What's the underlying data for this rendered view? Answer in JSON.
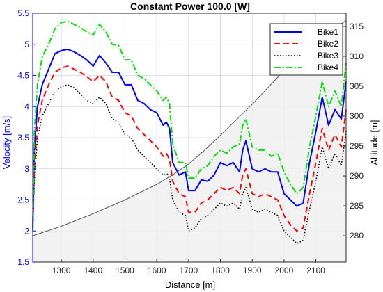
{
  "chart_data": {
    "type": "line",
    "title": "Constant Power 100.0 [W]",
    "xlabel": "Distance [m]",
    "ylabel_left": "Velocity [m/s]",
    "ylabel_right": "Altitude [m]",
    "xlim": [
      1210,
      2195
    ],
    "ylim_left": [
      1.5,
      5.5
    ],
    "ylim_right": [
      275.6,
      317.2
    ],
    "x_ticks": [
      1300,
      1400,
      1500,
      1600,
      1700,
      1800,
      1900,
      2000,
      2100
    ],
    "y_ticks_left": [
      1.5,
      2,
      2.5,
      3,
      3.5,
      4,
      4.5,
      5,
      5.5
    ],
    "y_ticks_right": [
      280,
      285,
      290,
      295,
      300,
      305,
      310,
      315
    ],
    "grid": true,
    "legend_position": "top-right",
    "colors": {
      "left_axis": "#0000ff",
      "altitude_line": "#555555",
      "altitude_fill": "#f0f0f0",
      "grid": "#d0d0ff"
    },
    "altitude": {
      "x": [
        1210,
        1300,
        1400,
        1500,
        1600,
        1650,
        1700,
        1750,
        1800,
        1850,
        1900,
        1950,
        2000,
        2050,
        2100,
        2150,
        2195
      ],
      "y": [
        280.0,
        281.6,
        283.7,
        286.0,
        288.6,
        290.2,
        292.0,
        294.3,
        296.8,
        299.4,
        302.0,
        304.8,
        307.6,
        310.2,
        312.4,
        314.3,
        316.0
      ]
    },
    "series": [
      {
        "name": "Bike1",
        "color": "#0000ff",
        "dash": "solid",
        "x": [
          1210,
          1215,
          1225,
          1240,
          1260,
          1280,
          1300,
          1320,
          1340,
          1360,
          1380,
          1400,
          1420,
          1440,
          1460,
          1480,
          1500,
          1520,
          1540,
          1560,
          1580,
          1600,
          1620,
          1630,
          1640,
          1650,
          1670,
          1690,
          1700,
          1720,
          1740,
          1760,
          1780,
          1800,
          1820,
          1840,
          1860,
          1870,
          1880,
          1900,
          1920,
          1940,
          1960,
          1980,
          2000,
          2020,
          2040,
          2060,
          2080,
          2100,
          2120,
          2140,
          2160,
          2180,
          2195
        ],
        "y": [
          2.0,
          3.3,
          4.0,
          4.35,
          4.6,
          4.85,
          4.9,
          4.92,
          4.88,
          4.82,
          4.75,
          4.65,
          4.82,
          4.7,
          4.55,
          4.55,
          4.35,
          4.35,
          4.1,
          4.05,
          3.95,
          3.9,
          3.7,
          3.75,
          3.65,
          3.1,
          2.9,
          2.95,
          2.65,
          2.65,
          2.82,
          2.8,
          2.9,
          3.1,
          3.05,
          3.1,
          2.95,
          3.3,
          3.45,
          3.0,
          2.95,
          3.0,
          2.95,
          2.95,
          2.6,
          2.5,
          2.4,
          2.45,
          3.1,
          3.6,
          4.15,
          3.7,
          3.95,
          3.8,
          4.4
        ]
      },
      {
        "name": "Bike2",
        "color": "#ff0000",
        "dash": "dashed",
        "x": [
          1210,
          1215,
          1225,
          1240,
          1260,
          1280,
          1300,
          1320,
          1340,
          1360,
          1380,
          1400,
          1420,
          1440,
          1460,
          1480,
          1500,
          1520,
          1540,
          1560,
          1580,
          1600,
          1620,
          1630,
          1640,
          1650,
          1670,
          1690,
          1700,
          1720,
          1740,
          1760,
          1780,
          1800,
          1820,
          1840,
          1860,
          1870,
          1880,
          1900,
          1920,
          1940,
          1960,
          1980,
          2000,
          2020,
          2040,
          2060,
          2080,
          2100,
          2120,
          2140,
          2160,
          2180,
          2195
        ],
        "y": [
          2.0,
          3.0,
          3.7,
          4.1,
          4.35,
          4.55,
          4.62,
          4.65,
          4.6,
          4.55,
          4.48,
          4.4,
          4.5,
          4.4,
          4.15,
          4.1,
          3.9,
          3.85,
          3.65,
          3.55,
          3.45,
          3.35,
          3.2,
          3.25,
          3.15,
          2.8,
          2.6,
          2.55,
          2.3,
          2.3,
          2.45,
          2.5,
          2.6,
          2.7,
          2.65,
          2.7,
          2.6,
          2.9,
          3.0,
          2.6,
          2.55,
          2.6,
          2.55,
          2.5,
          2.25,
          2.1,
          2.0,
          2.05,
          2.6,
          3.1,
          3.65,
          3.3,
          3.55,
          3.35,
          3.95
        ]
      },
      {
        "name": "Bike3",
        "color": "#000000",
        "dash": "dotted",
        "x": [
          1210,
          1215,
          1225,
          1240,
          1260,
          1280,
          1300,
          1320,
          1340,
          1360,
          1380,
          1400,
          1420,
          1440,
          1460,
          1480,
          1500,
          1520,
          1540,
          1560,
          1580,
          1600,
          1620,
          1630,
          1640,
          1650,
          1670,
          1690,
          1700,
          1720,
          1740,
          1760,
          1780,
          1800,
          1820,
          1840,
          1860,
          1870,
          1880,
          1900,
          1920,
          1940,
          1960,
          1980,
          2000,
          2020,
          2040,
          2060,
          2080,
          2100,
          2120,
          2140,
          2160,
          2180,
          2195
        ],
        "y": [
          2.0,
          2.8,
          3.5,
          3.85,
          4.05,
          4.25,
          4.32,
          4.35,
          4.3,
          4.2,
          4.1,
          4.05,
          4.15,
          4.05,
          3.8,
          3.75,
          3.55,
          3.5,
          3.3,
          3.2,
          3.1,
          3.0,
          2.9,
          2.95,
          2.85,
          2.5,
          2.3,
          2.25,
          2.0,
          2.05,
          2.2,
          2.25,
          2.35,
          2.45,
          2.4,
          2.45,
          2.35,
          2.6,
          2.7,
          2.35,
          2.3,
          2.35,
          2.3,
          2.25,
          2.0,
          1.9,
          1.8,
          1.85,
          2.35,
          2.8,
          3.35,
          3.0,
          3.25,
          3.05,
          3.6
        ]
      },
      {
        "name": "Bike4",
        "color": "#00dd00",
        "dash": "dashdot",
        "x": [
          1210,
          1215,
          1225,
          1240,
          1260,
          1280,
          1300,
          1320,
          1340,
          1360,
          1380,
          1400,
          1420,
          1440,
          1460,
          1480,
          1500,
          1520,
          1540,
          1560,
          1580,
          1600,
          1620,
          1630,
          1640,
          1650,
          1670,
          1690,
          1700,
          1720,
          1740,
          1760,
          1780,
          1800,
          1820,
          1840,
          1860,
          1870,
          1880,
          1900,
          1920,
          1940,
          1960,
          1980,
          2000,
          2020,
          2040,
          2060,
          2080,
          2100,
          2120,
          2140,
          2160,
          2180,
          2195
        ],
        "y": [
          2.0,
          3.6,
          4.35,
          4.8,
          5.0,
          5.25,
          5.35,
          5.37,
          5.32,
          5.27,
          5.2,
          5.15,
          5.32,
          5.2,
          5.0,
          4.98,
          4.75,
          4.75,
          4.5,
          4.45,
          4.35,
          4.25,
          4.1,
          4.15,
          4.05,
          3.4,
          3.1,
          3.1,
          2.85,
          2.85,
          3.0,
          3.05,
          3.2,
          3.3,
          3.25,
          3.35,
          3.4,
          3.7,
          3.8,
          3.35,
          3.3,
          3.3,
          3.2,
          3.25,
          2.95,
          2.75,
          2.6,
          2.7,
          3.35,
          3.85,
          4.4,
          4.0,
          4.25,
          4.0,
          4.7
        ]
      }
    ]
  }
}
